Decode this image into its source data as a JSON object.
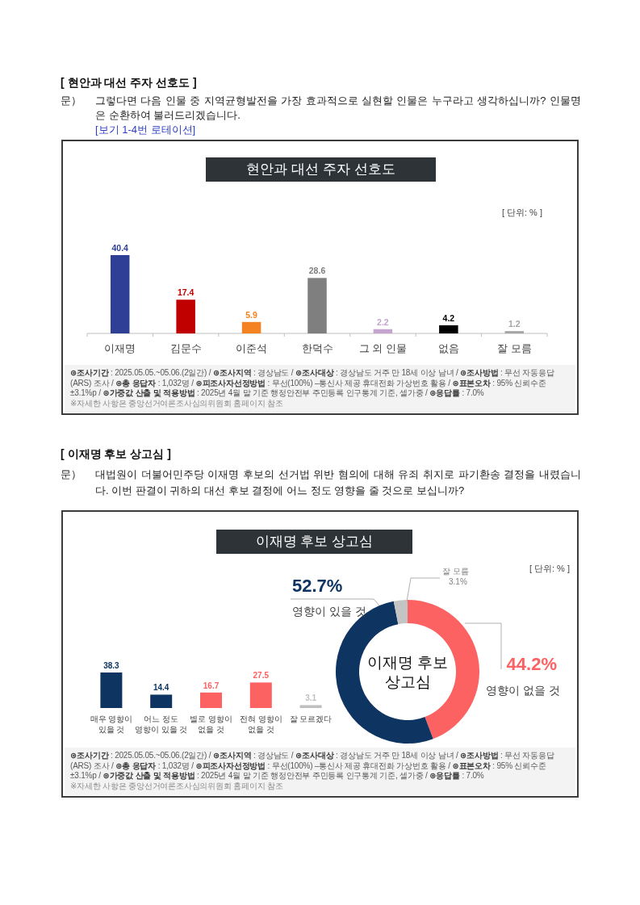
{
  "chart_data": [
    {
      "type": "bar",
      "title": "현안과 대선 주자 선호도",
      "subtitle": "그렇다면 다음 인물 중 지역균형발전을 가장 효과적으로 실현할 인물은 누구라고 생각하십니까? 인물명은 순환하여 불러드리겠습니다.",
      "annotations": [
        "[ 현안과 대선 주자 선호도 ]",
        "문）",
        "[ 단위: % ]",
        "**⊛조사기간** : 2025.05.05.~05.06.(2일간) / **⊛조사지역** : 경상남도 / **⊛조사대상** : 경상남도 거주 만 18세 이상 남녀 / **⊛조사방법** : 무선 자동응답(ARS) 조사 / **⊛총 응답자** : 1,032명 / **⊛피조사자선정방법** : 무선(100%) –통신사 제공 휴대전화 가상번호 활용 / **⊛표본오차** : 95% 신뢰수준 ±3.1%p / **⊛가중값 산출 및 적용방법** : 2025년 4월 말 기준 행정안전부 주민등록 인구통계 기준, 셀가중 / **⊛응답률** : 7.0%",
        "※자세한 사항은 중앙선거여론조사심의위원회 홈페이지 참조",
        "[보기 1-4번 로테이션]"
      ],
      "categories": [
        "이재명",
        "김문수",
        "이준석",
        "한덕수",
        "그 외 인물",
        "없음",
        "잘 모름"
      ],
      "values": [
        40.4,
        17.4,
        5.9,
        28.6,
        2.2,
        4.2,
        1.2
      ],
      "colors": [
        "#2f3f96",
        "#c00000",
        "#f58220",
        "#7f7f7f",
        "#c5a5cf",
        "#000000",
        "#a6a6a6"
      ],
      "data_labels": true
    },
    {
      "type": "bar",
      "title": "이재명 후보 상고심",
      "subtitle": "대법원이 더불어민주당 이재명 후보의 선거법 위반 혐의에 대해 유죄 취지로 파기환송 결정을 내렸습니다. 이번 판결이 귀하의 대선 후보 결정에 어느 정도 영향을 줄 것으로 보십니까?",
      "annotations": [
        "[ 이재명 후보 상고심 ]",
        "문）",
        "[ 단위: % ]",
        "**⊛조사기간** : 2025.05.05.~05.06.(2일간) / **⊛조사지역** : 경상남도 / **⊛조사대상** : 경상남도 거주 만 18세 이상 남녀 / **⊛조사방법** : 무선 자동응답(ARS) 조사 / **⊛총 응답자** : 1,032명 / **⊛피조사자선정방법** : 무선(100%) –통신사 제공 휴대전화 가상번호 활용 / **⊛표본오차** : 95% 신뢰수준 ±3.1%p / **⊛가중값 산출 및 적용방법** : 2025년 4월 말 기준 행정안전부 주민등록 인구통계 기준, 셀가중 / **⊛응답률** : 7.0%",
        "※자세한 사항은 중앙선거여론조사심의위원회 홈페이지 참조"
      ],
      "categories": [
        "매우 영향이\n있을 것",
        "어느 정도\n영향이 있을 것",
        "별로 영향이\n없을 것",
        "전혀 영향이\n없을 것",
        "잘 모르겠다"
      ],
      "values": [
        38.3,
        14.4,
        16.7,
        27.5,
        3.1
      ],
      "colors": [
        "#0e3561",
        "#0e3561",
        "#fd6262",
        "#fd6262",
        "#bfbfbf"
      ],
      "data_labels": true
    },
    {
      "type": "donut",
      "categories": [
        "영향이 없을 것",
        "영향이 있을 것",
        "잘 모름"
      ],
      "values": [
        44.2,
        52.7,
        3.1
      ],
      "colors": [
        "#fd6262",
        "#0e3561",
        "#c4c4c4"
      ],
      "value_labels": [
        "44.2%",
        "52.7%",
        "3.1%"
      ],
      "annotations": [
        "이재명 후보\n상고심"
      ]
    }
  ]
}
